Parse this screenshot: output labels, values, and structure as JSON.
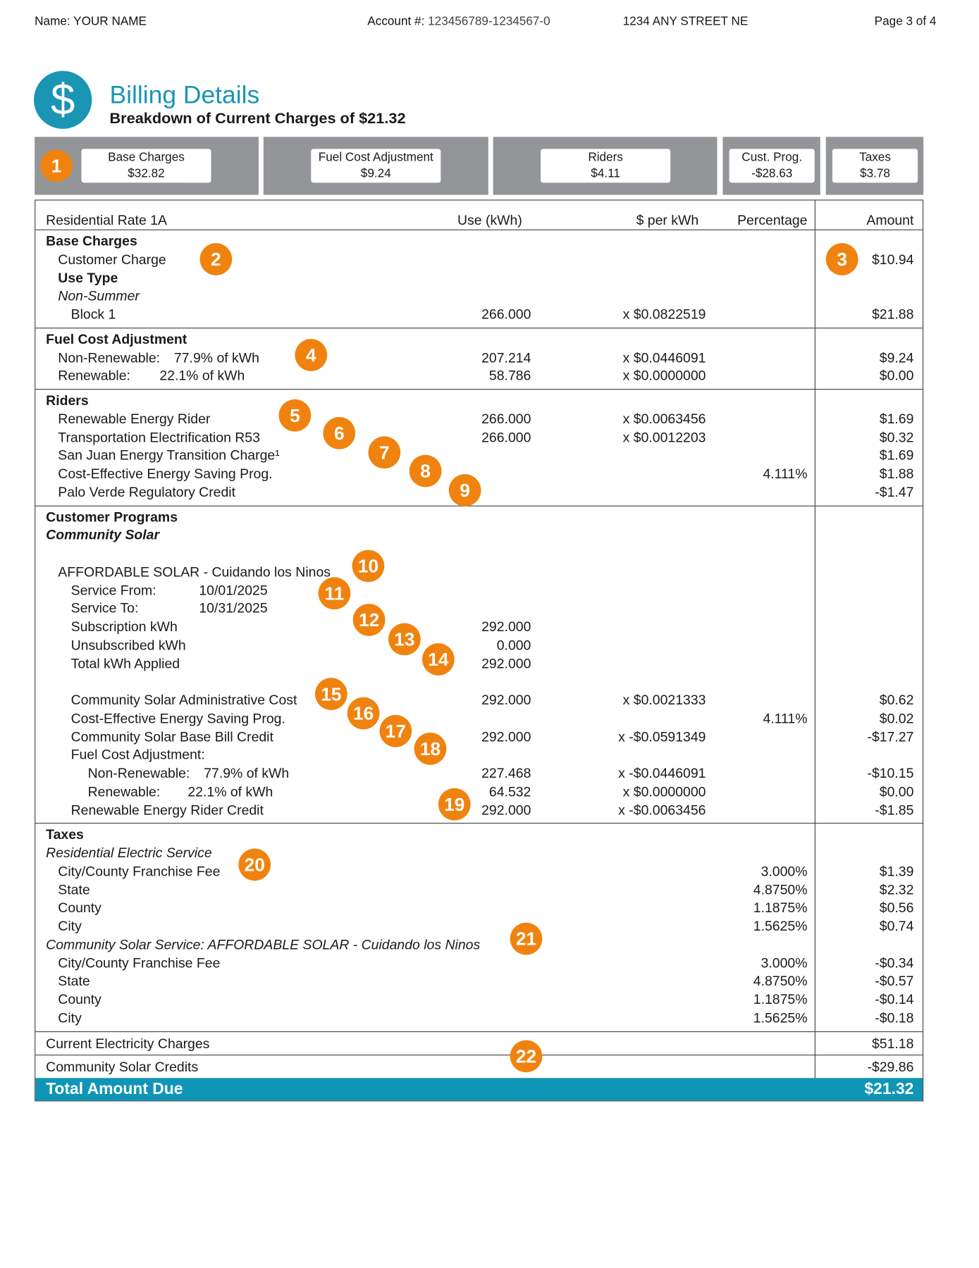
{
  "header": {
    "name_label": "Name:",
    "name": "YOUR NAME",
    "account_label": "Account #:",
    "account": "123456789-1234567-0",
    "address": "1234 ANY STREET NE",
    "page": "Page 3 of 4"
  },
  "title": {
    "icon": "$",
    "heading": "Billing Details",
    "subheading": "Breakdown of Current Charges of $21.32"
  },
  "summary": [
    {
      "label": "Base Charges",
      "amount": "$32.82"
    },
    {
      "label": "Fuel Cost Adjustment",
      "amount": "$9.24"
    },
    {
      "label": "Riders",
      "amount": "$4.11"
    },
    {
      "label": "Cust. Prog.",
      "amount": "-$28.63"
    },
    {
      "label": "Taxes",
      "amount": "$3.78"
    }
  ],
  "table": {
    "columns": [
      "Residential Rate 1A",
      "Use (kWh)",
      "$ per kWh",
      "Percentage",
      "Amount"
    ],
    "sections": [
      {
        "rows": [
          {
            "label": "Base Charges"
          },
          {
            "label": "Customer Charge",
            "amount": "$10.94"
          },
          {
            "label": "Use Type"
          },
          {
            "label": "Non-Summer"
          },
          {
            "label": "Block 1",
            "use": "266.000",
            "rate": "x $0.0822519",
            "amount": "$21.88"
          }
        ]
      },
      {
        "rows": [
          {
            "label": "Fuel Cost Adjustment"
          },
          {
            "label": "Non-Renewable:",
            "detail": "77.9% of kWh",
            "use": "207.214",
            "rate": "x $0.0446091",
            "amount": "$9.24"
          },
          {
            "label": "Renewable:",
            "detail": "22.1% of kWh",
            "use": "58.786",
            "rate": "x $0.0000000",
            "amount": "$0.00"
          }
        ]
      },
      {
        "rows": [
          {
            "label": "Riders"
          },
          {
            "label": "Renewable Energy Rider",
            "use": "266.000",
            "rate": "x $0.0063456",
            "amount": "$1.69"
          },
          {
            "label": "Transportation Electrification R53",
            "use": "266.000",
            "rate": "x $0.0012203",
            "amount": "$0.32"
          },
          {
            "label": "San Juan Energy Transition Charge¹",
            "amount": "$1.69"
          },
          {
            "label": "Cost-Effective Energy Saving Prog.",
            "pct": "4.111%",
            "amount": "$1.88"
          },
          {
            "label": "Palo Verde Regulatory Credit",
            "amount": "-$1.47"
          }
        ]
      },
      {
        "rows": [
          {
            "label": "Customer Programs"
          },
          {
            "label": "Community Solar"
          },
          {
            "label": "AFFORDABLE SOLAR - Cuidando los Ninos"
          },
          {
            "label": "Service From:",
            "detail": "10/01/2025"
          },
          {
            "label": "Service To:",
            "detail": "10/31/2025"
          },
          {
            "label": "Subscription kWh",
            "use": "292.000"
          },
          {
            "label": "Unsubscribed kWh",
            "use": "0.000"
          },
          {
            "label": "Total kWh Applied",
            "use": "292.000"
          },
          {
            "label": "Community Solar Administrative Cost",
            "use": "292.000",
            "rate": "x $0.0021333",
            "amount": "$0.62"
          },
          {
            "label": "Cost-Effective Energy Saving Prog.",
            "pct": "4.111%",
            "amount": "$0.02"
          },
          {
            "label": "Community Solar Base Bill Credit",
            "use": "292.000",
            "rate": "x -$0.0591349",
            "amount": "-$17.27"
          },
          {
            "label": "Fuel Cost Adjustment:"
          },
          {
            "label": "Non-Renewable:",
            "detail": "77.9% of kWh",
            "use": "227.468",
            "rate": "x -$0.0446091",
            "amount": "-$10.15"
          },
          {
            "label": "Renewable:",
            "detail": "22.1% of kWh",
            "use": "64.532",
            "rate": "x $0.0000000",
            "amount": "$0.00"
          },
          {
            "label": "Renewable Energy Rider Credit",
            "use": "292.000",
            "rate": "x -$0.0063456",
            "amount": "-$1.85"
          }
        ]
      },
      {
        "rows": [
          {
            "label": "Taxes"
          },
          {
            "label": "Residential Electric Service"
          },
          {
            "label": "City/County Franchise Fee",
            "pct": "3.000%",
            "amount": "$1.39"
          },
          {
            "label": "State",
            "pct": "4.8750%",
            "amount": "$2.32"
          },
          {
            "label": "County",
            "pct": "1.1875%",
            "amount": "$0.56"
          },
          {
            "label": "City",
            "pct": "1.5625%",
            "amount": "$0.74"
          },
          {
            "label": "Community Solar Service: AFFORDABLE SOLAR - Cuidando los Ninos"
          },
          {
            "label": "City/County Franchise Fee",
            "pct": "3.000%",
            "amount": "-$0.34"
          },
          {
            "label": "State",
            "pct": "4.8750%",
            "amount": "-$0.57"
          },
          {
            "label": "County",
            "pct": "1.1875%",
            "amount": "-$0.14"
          },
          {
            "label": "City",
            "pct": "1.5625%",
            "amount": "-$0.18"
          }
        ]
      }
    ],
    "totals": [
      {
        "label": "Current Electricity Charges",
        "amount": "$51.18"
      },
      {
        "label": "Community Solar Credits",
        "amount": "-$29.86"
      }
    ],
    "total_due": {
      "label": "Total Amount Due",
      "amount": "$21.32"
    }
  },
  "badges": [
    "1",
    "2",
    "3",
    "4",
    "5",
    "6",
    "7",
    "8",
    "9",
    "10",
    "11",
    "12",
    "13",
    "14",
    "15",
    "16",
    "17",
    "18",
    "19",
    "20",
    "21",
    "22"
  ]
}
